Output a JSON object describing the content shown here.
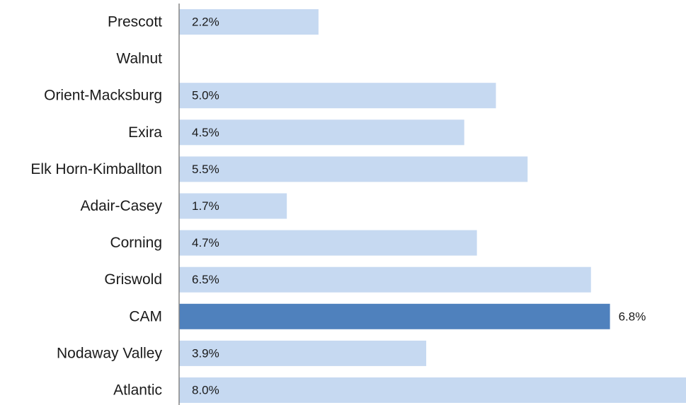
{
  "chart_data": {
    "type": "bar",
    "orientation": "horizontal",
    "categories": [
      "Prescott",
      "Walnut",
      "Orient-Macksburg",
      "Exira",
      "Elk Horn-Kimballton",
      "Adair-Casey",
      "Corning",
      "Griswold",
      "CAM",
      "Nodaway Valley",
      "Atlantic"
    ],
    "values": [
      2.2,
      null,
      5.0,
      4.5,
      5.5,
      1.7,
      4.7,
      6.5,
      6.8,
      3.9,
      8.0
    ],
    "value_labels": [
      "2.2%",
      "",
      "5.0%",
      "4.5%",
      "5.5%",
      "1.7%",
      "4.7%",
      "6.5%",
      "6.8%",
      "3.9%",
      "8.0%"
    ],
    "highlight_index": 8,
    "xlim": [
      0,
      8.0
    ],
    "grid": false,
    "colors": {
      "bar": "#c6d9f1",
      "highlight": "#4f81bd",
      "axis": "#868686",
      "text": "#1a1a1a"
    }
  }
}
